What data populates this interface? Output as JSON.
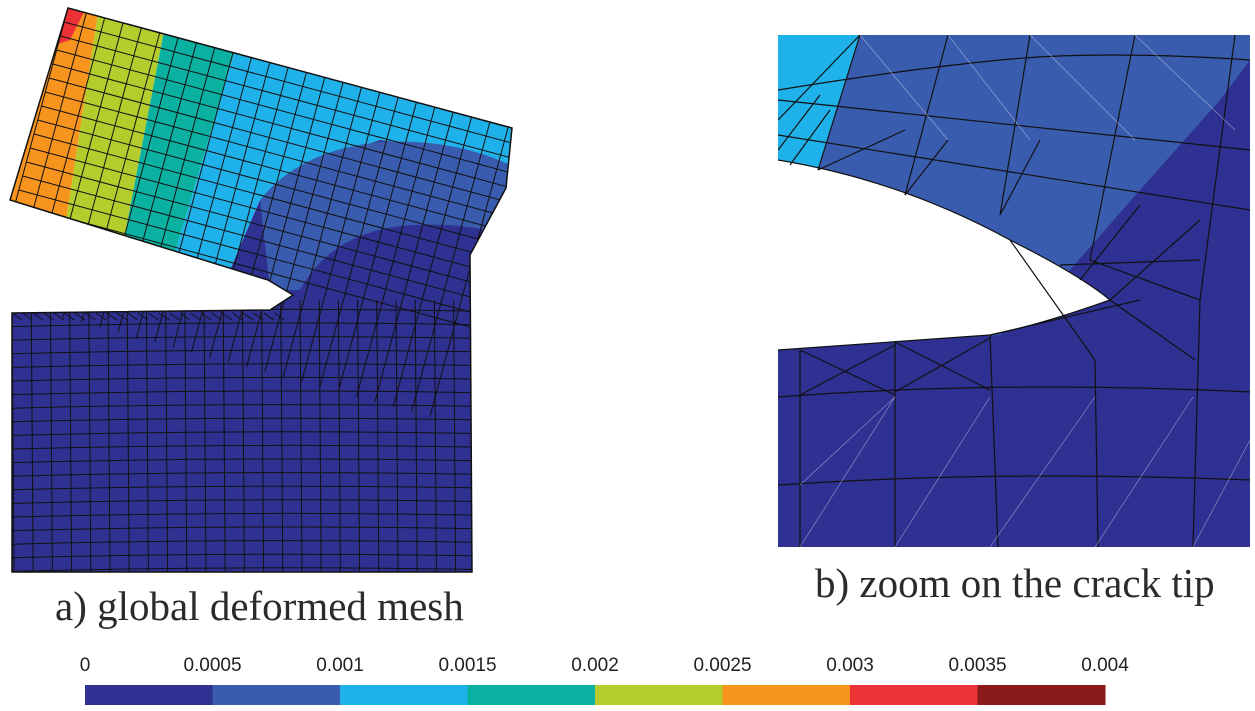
{
  "captions": {
    "a": "a) global deformed mesh",
    "b": "b) zoom on the crack tip"
  },
  "colorbar": {
    "tick_labels": [
      "0",
      "0.0005",
      "0.001",
      "0.0015",
      "0.002",
      "0.0025",
      "0.003",
      "0.0035",
      "0.004"
    ],
    "colors": [
      "#2e3192",
      "#3a5cae",
      "#1fb2ea",
      "#0ab0a0",
      "#b4cc2c",
      "#f7941d",
      "#ed3237",
      "#8b1a1a"
    ]
  },
  "colors": {
    "mesh_line": "#111111",
    "background": "#ffffff"
  }
}
